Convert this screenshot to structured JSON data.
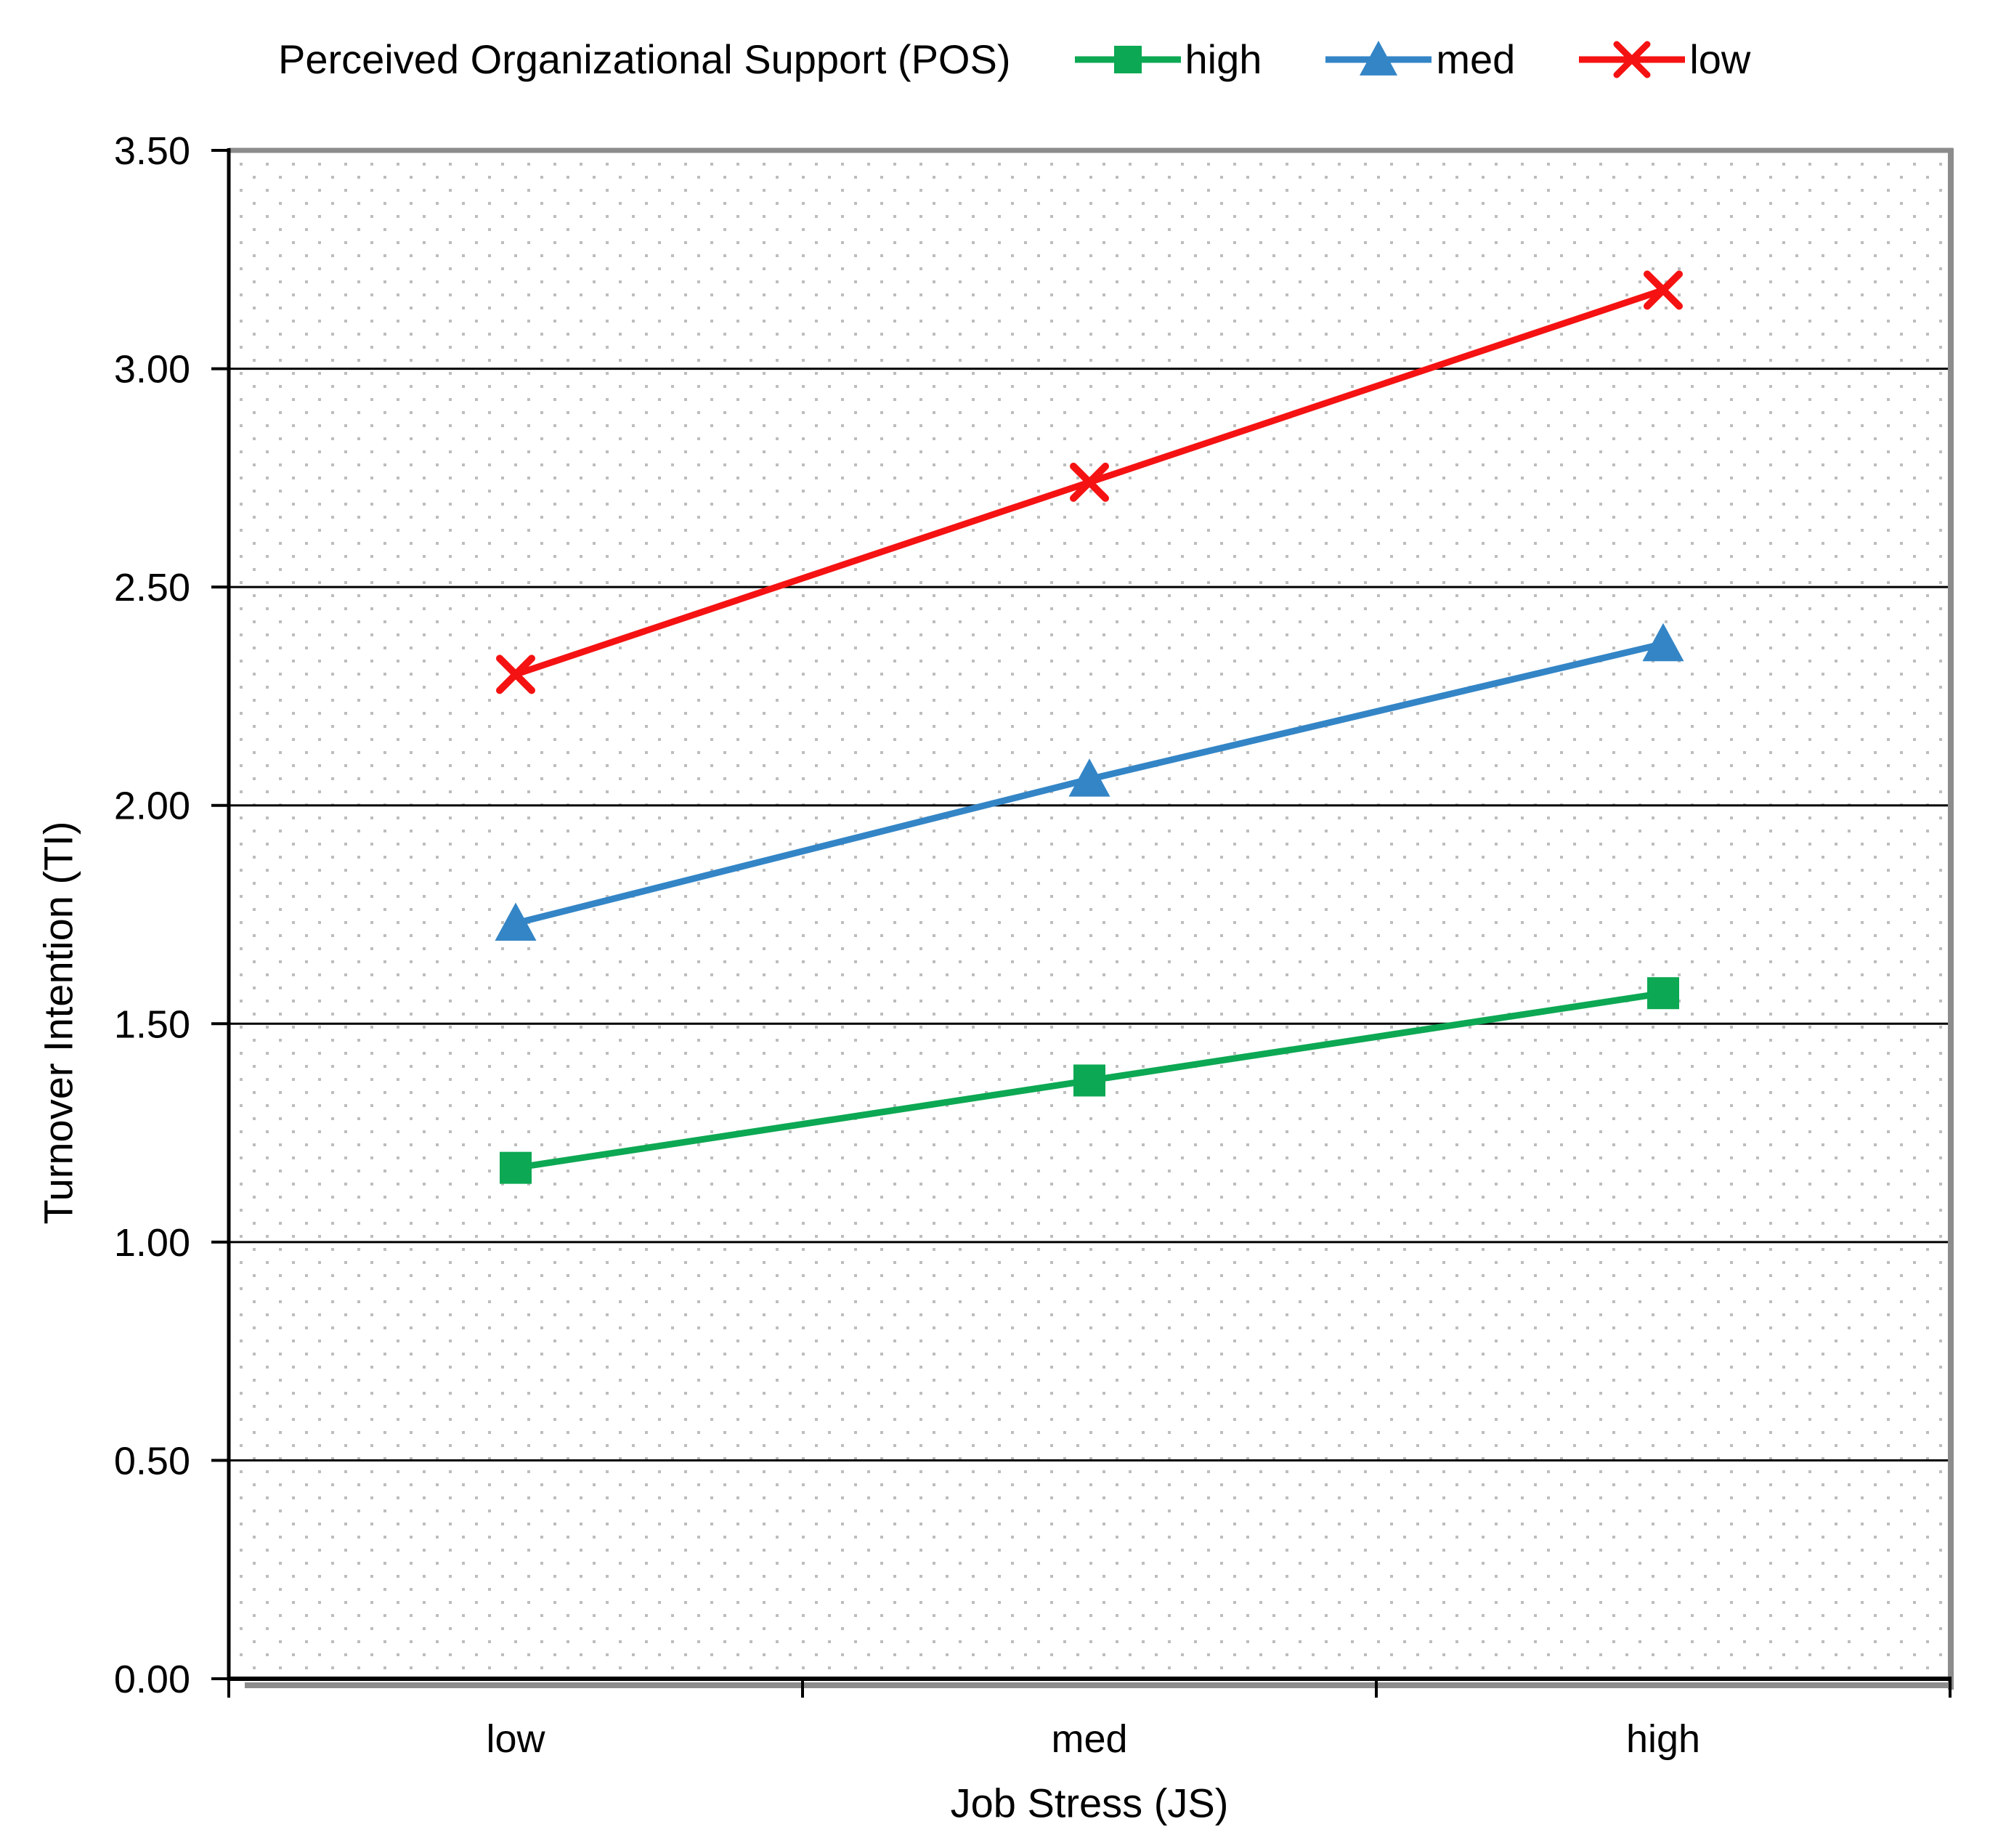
{
  "page": {
    "background": "#ffffff"
  },
  "legend": {
    "title": "Perceived Organizational Support (POS)",
    "position": "top"
  },
  "chart_data": {
    "type": "line",
    "categories": [
      "low",
      "med",
      "high"
    ],
    "series": [
      {
        "name": "high",
        "marker": "square",
        "color": "#0CA853",
        "values": [
          1.17,
          1.37,
          1.57
        ]
      },
      {
        "name": "med",
        "marker": "triangle",
        "color": "#3385C6",
        "values": [
          1.73,
          2.06,
          2.37
        ]
      },
      {
        "name": "low",
        "marker": "x",
        "color": "#F51212",
        "values": [
          2.3,
          2.74,
          3.18
        ]
      }
    ],
    "xlabel": "Job Stress (JS)",
    "ylabel": "Turnover Intention (TI)",
    "ylim": [
      0,
      3.5
    ],
    "ytick_step": 0.5,
    "ytick_decimals": 2,
    "grid": "horizontal-solid",
    "plot_background": "dotted",
    "legend_position": "top"
  },
  "colors": {
    "grid": "#000000",
    "axis": "#000000",
    "frame_shadow": "#8C8C8C",
    "dots": "#BDBDBD",
    "text": "#000000"
  }
}
